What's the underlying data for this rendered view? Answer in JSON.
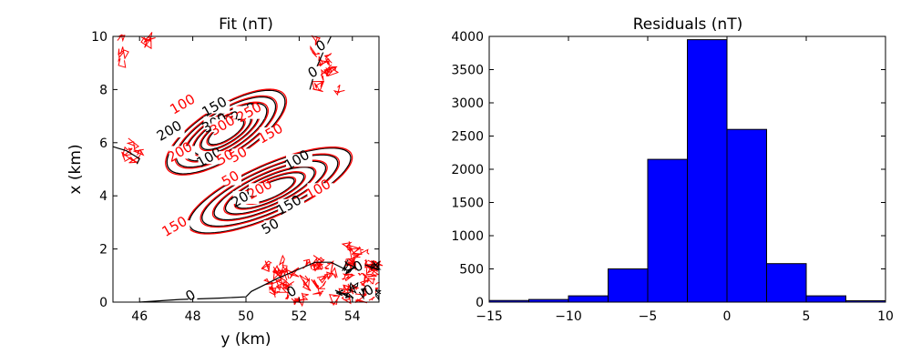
{
  "chart_data": [
    {
      "type": "contour",
      "title": "Fit (nT)",
      "xlabel": "y (km)",
      "ylabel": "x (km)",
      "xlim": [
        45,
        55
      ],
      "ylim": [
        0,
        10
      ],
      "xticks": [
        "46",
        "48",
        "50",
        "52",
        "54"
      ],
      "yticks": [
        "0",
        "2",
        "4",
        "6",
        "8",
        "10"
      ],
      "grid": false,
      "series": [
        {
          "color": "#000000",
          "levels": [
            0,
            50,
            100,
            150,
            200,
            250,
            300
          ]
        },
        {
          "color": "#ff0000",
          "levels": [
            0,
            50,
            100,
            150,
            200,
            250,
            300
          ]
        }
      ],
      "contour_labels": [
        {
          "text": "0",
          "color": "#000000",
          "x": 48.0,
          "y": 0.1
        },
        {
          "text": "0",
          "color": "#000000",
          "x": 51.8,
          "y": 0.25
        },
        {
          "text": "0",
          "color": "#000000",
          "x": 54.7,
          "y": 0.3
        },
        {
          "text": "0",
          "color": "#000000",
          "x": 54.3,
          "y": 1.2
        },
        {
          "text": "0",
          "color": "#000000",
          "x": 52.6,
          "y": 8.5
        },
        {
          "text": "0",
          "color": "#000000",
          "x": 52.9,
          "y": 9.5
        },
        {
          "text": "100",
          "color": "#ff0000",
          "x": 47.7,
          "y": 7.3
        },
        {
          "text": "150",
          "color": "#000000",
          "x": 48.9,
          "y": 7.2
        },
        {
          "text": "250",
          "color": "#000000",
          "x": 50.0,
          "y": 7.0
        },
        {
          "text": "250",
          "color": "#ff0000",
          "x": 50.2,
          "y": 7.0
        },
        {
          "text": "300",
          "color": "#000000",
          "x": 48.9,
          "y": 6.6
        },
        {
          "text": "300",
          "color": "#ff0000",
          "x": 49.2,
          "y": 6.5
        },
        {
          "text": "200",
          "color": "#000000",
          "x": 47.2,
          "y": 6.3
        },
        {
          "text": "150",
          "color": "#ff0000",
          "x": 51.0,
          "y": 6.2
        },
        {
          "text": "200",
          "color": "#ff0000",
          "x": 47.6,
          "y": 5.5
        },
        {
          "text": "100",
          "color": "#000000",
          "x": 48.7,
          "y": 5.3
        },
        {
          "text": "50",
          "color": "#ff0000",
          "x": 49.3,
          "y": 5.3
        },
        {
          "text": "50",
          "color": "#ff0000",
          "x": 49.8,
          "y": 5.4
        },
        {
          "text": "100",
          "color": "#000000",
          "x": 52.0,
          "y": 5.2
        },
        {
          "text": "50",
          "color": "#ff0000",
          "x": 49.5,
          "y": 4.5
        },
        {
          "text": "200",
          "color": "#000000",
          "x": 50.0,
          "y": 3.8
        },
        {
          "text": "200",
          "color": "#ff0000",
          "x": 50.6,
          "y": 4.1
        },
        {
          "text": "150",
          "color": "#000000",
          "x": 51.7,
          "y": 3.5
        },
        {
          "text": "100",
          "color": "#ff0000",
          "x": 52.8,
          "y": 4.1
        },
        {
          "text": "150",
          "color": "#ff0000",
          "x": 47.4,
          "y": 2.7
        },
        {
          "text": "50",
          "color": "#000000",
          "x": 51.0,
          "y": 2.7
        }
      ]
    },
    {
      "type": "bar",
      "title": "Residuals (nT)",
      "xlabel": "",
      "ylabel": "",
      "xlim": [
        -15,
        10
      ],
      "ylim": [
        0,
        4000
      ],
      "xticks": [
        "−15",
        "−10",
        "−5",
        "0",
        "5",
        "10"
      ],
      "yticks": [
        "0",
        "500",
        "1000",
        "1500",
        "2000",
        "2500",
        "3000",
        "3500",
        "4000"
      ],
      "grid": false,
      "color": "#0000ff",
      "bin_edges": [
        -15.0,
        -12.5,
        -10.0,
        -7.5,
        -5.0,
        -2.5,
        0.0,
        2.5,
        5.0,
        7.5,
        10.0
      ],
      "values": [
        25,
        40,
        95,
        500,
        2150,
        3950,
        2600,
        580,
        95,
        20
      ]
    }
  ]
}
